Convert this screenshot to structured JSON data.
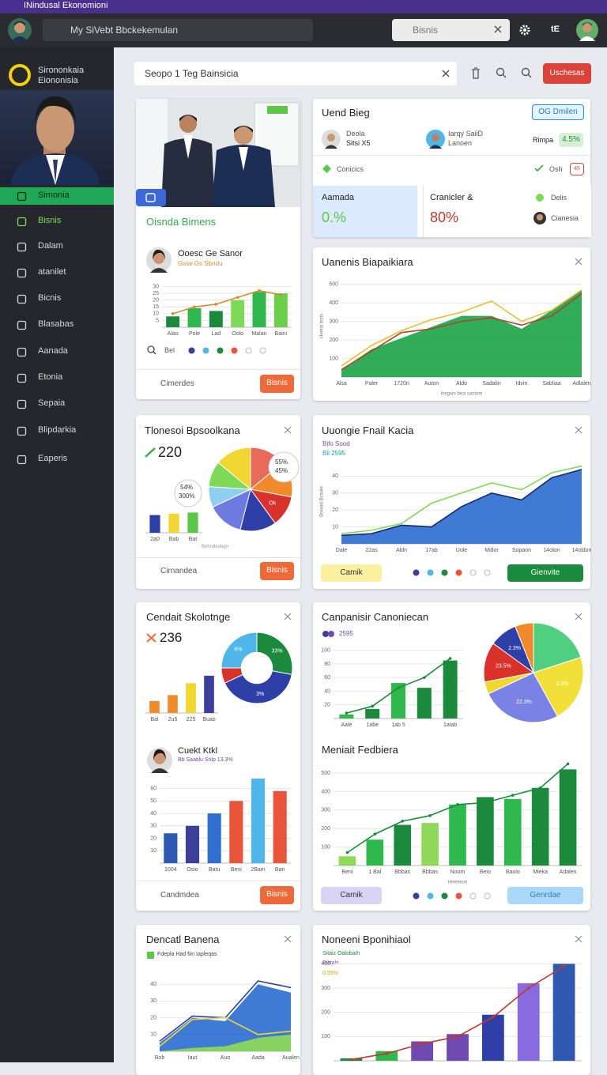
{
  "browser": {
    "tab_title": "INindusal Ekonomioni"
  },
  "header": {
    "search_placeholder": "My SiVebt Bbckekemulan",
    "search_query": "Bisnis",
    "badge": "tE"
  },
  "sidebar": {
    "brand": [
      "Sirononkaia",
      "Eiononisia"
    ],
    "menu": [
      "Simonia",
      "Bisnis",
      "Dalam",
      "atanilet",
      "Bicnis",
      "Blasabas",
      "Aanada",
      "Etonia",
      "Sepaia",
      "Blipdarkia",
      "Eaperis"
    ]
  },
  "toolbar": {
    "search": "Seopo 1 Teg Bainsicia",
    "button": "Uschesas"
  },
  "cards": [
    {
      "title": "Oisnda Bimens",
      "person": {
        "name": "Ooesc Ge Sanor",
        "detail": "Gsse Gs Sbndu"
      },
      "chart": {
        "type": "bar",
        "ylim": [
          0,
          35
        ],
        "yticks": [
          5,
          10,
          15,
          20,
          25,
          30
        ],
        "categories": [
          "Alao",
          "Pole",
          "Lad",
          "Oolo",
          "Malan",
          "Baini"
        ],
        "series": [
          {
            "values": [
              8,
              14,
              12,
              20,
              26,
              25
            ],
            "colors": [
              "#1c8a3c",
              "#2fb84e",
              "#1c8a3c",
              "#7ed957",
              "#2fb84e",
              "#6ccf4a"
            ]
          },
          {
            "type": "line",
            "values": [
              10,
              15,
              17,
              22,
              27,
              24
            ],
            "color": "#d98b2b"
          }
        ]
      },
      "icon_label": "Bel",
      "footer": "Cimerdes",
      "button": "Bisnis"
    },
    {
      "title": "Uend Bieg",
      "badge": "OG Dmilen",
      "people": [
        {
          "name": "Deola",
          "detail": "Sitsi X5"
        },
        {
          "name": "Iarqy SaiiD",
          "detail": "Lanoen"
        }
      ],
      "metric_label": "Rimpa",
      "metric": "4.5%",
      "row": {
        "label": "Conicics",
        "status": "Osh",
        "flag": "45"
      },
      "tiles": [
        {
          "label": "Aamada",
          "value": "0.%"
        },
        {
          "label": "Cranicler &",
          "value": "80%"
        }
      ],
      "side": [
        "Delis",
        "Cianesia"
      ]
    },
    {
      "title": "Uanenis Biapaikiara",
      "chart": {
        "type": "area",
        "ylim": [
          0,
          550
        ],
        "yticks": [
          100,
          200,
          300,
          400,
          500
        ],
        "categories": [
          "Alsa",
          "Paler",
          "1720n",
          "Auton",
          "Aldo",
          "Sadalin",
          "Idvin",
          "Sabliaa",
          "Adlalen"
        ],
        "x_label": "Icegsio bica sactom",
        "y_label": "Hoetai bisis",
        "series": [
          {
            "values": [
              40,
              150,
              210,
              270,
              330,
              330,
              260,
              360,
              470
            ],
            "color": "#1fa54a"
          },
          {
            "type": "line",
            "values": [
              60,
              170,
              250,
              310,
              350,
              410,
              300,
              360,
              470
            ],
            "color": "#e5c12c"
          },
          {
            "type": "line",
            "values": [
              40,
              140,
              240,
              260,
              300,
              320,
              280,
              330,
              450
            ],
            "color": "#b0432c"
          }
        ]
      }
    },
    {
      "title": "Tlonesoi Bpsoolkana",
      "figure": "220",
      "bar_notes": [
        "54%",
        "300%"
      ],
      "chart": {
        "type": "bar",
        "ylim": [
          0,
          40
        ],
        "categories": [
          "2a0",
          "Bab",
          "Bat"
        ],
        "series": [
          {
            "values": [
              28,
              30,
              32
            ],
            "colors": [
              "#2f3fa8",
              "#f2d632",
              "#5cc84a"
            ]
          }
        ]
      },
      "pie": {
        "type": "pie",
        "values": [
          14,
          14,
          12,
          14,
          14,
          8,
          10,
          14
        ],
        "colors": [
          "#e86a5a",
          "#f08a2a",
          "#d8322a",
          "#2f3fa8",
          "#6f7ae0",
          "#8fd0f0",
          "#7ed957",
          "#f2d632"
        ],
        "value_labels": [
          null,
          null,
          "Ok",
          null,
          null,
          null,
          null,
          null
        ]
      },
      "pie_notes": [
        "55%",
        "45%"
      ],
      "caption": "Bnhrdbulagn",
      "footer": "Cirnandea",
      "button": "Bisnis"
    },
    {
      "title": "Uuongie Fnail Kacia",
      "legend": [
        "Bifo Sood",
        "Bli 2595"
      ],
      "chart": {
        "type": "area",
        "ylim": [
          0,
          50
        ],
        "yticks": [
          10,
          20,
          30,
          40
        ],
        "y_label": "Boiaad Bcaoie",
        "categories": [
          "Dale",
          "22as",
          "Aldn",
          "17ab",
          "Uole",
          "Mdlor",
          "Sopaon",
          "14oton",
          "14oldon"
        ],
        "series": [
          {
            "values": [
              5,
              6,
              11,
              10,
              22,
              30,
              26,
              39,
              44
            ],
            "color": "#2f6fd0"
          },
          {
            "type": "line",
            "values": [
              6,
              8,
              12,
              24,
              30,
              36,
              32,
              42,
              46
            ],
            "color": "#7ed957"
          },
          {
            "type": "line",
            "values": [
              5,
              6,
              11,
              10,
              22,
              30,
              26,
              39,
              44
            ],
            "color": "#1a2a6a"
          }
        ]
      },
      "buttons": [
        "Camik",
        "Gienvite"
      ]
    },
    {
      "title": "Cendait Skolotnge",
      "figure": "236",
      "chart": {
        "type": "bar",
        "ylim": [
          0,
          35
        ],
        "categories": [
          "Bal",
          "2u5",
          "225",
          "Buao"
        ],
        "series": [
          {
            "values": [
              8,
              12,
              20,
              25
            ],
            "colors": [
              "#f08a2a",
              "#f08a2a",
              "#f2d632",
              "#3a3f9a"
            ]
          }
        ]
      },
      "donut": {
        "type": "donut",
        "values": [
          28,
          40,
          7,
          25
        ],
        "colors": [
          "#1c8a3c",
          "#2f3fa8",
          "#d8322a",
          "#4fb6ea"
        ],
        "value_labels": [
          "33%",
          "3%",
          null,
          "6%"
        ]
      },
      "person": {
        "name": "Cuekt Ktkl",
        "detail": "Bb Saatilu Snlp 13.3%"
      },
      "chart2": {
        "type": "bar",
        "ylim": [
          0,
          75
        ],
        "yticks": [
          10,
          20,
          30,
          40,
          50,
          60
        ],
        "categories": [
          "1004",
          "Osio",
          "Batu",
          "Beni",
          "2Bam",
          "Ban"
        ],
        "series": [
          {
            "values": [
              24,
              30,
              40,
              50,
              68,
              58
            ],
            "colors": [
              "#2f58b0",
              "#3a3f9a",
              "#2f6fd0",
              "#e8553a",
              "#4fb6ea",
              "#e8553a"
            ]
          }
        ]
      },
      "footer": "Candmdea",
      "button": "Bisnis"
    },
    {
      "title": "Canpanisir Canoniecan",
      "legend": "2595",
      "chart": {
        "type": "bar",
        "ylim": [
          0,
          110
        ],
        "yticks": [
          20,
          40,
          60,
          80,
          100
        ],
        "categories": [
          "Aale",
          "1abe",
          "1ab 5",
          null,
          "1alab"
        ],
        "series": [
          {
            "values": [
              6,
              14,
              52,
              45,
              85
            ],
            "colors": [
              "#2fb84e",
              "#1c8a3c",
              "#2fb84e",
              "#1c8a3c",
              "#1c8a3c"
            ]
          },
          {
            "type": "line",
            "values": [
              8,
              18,
              45,
              60,
              88
            ],
            "color": "#1c8a3c"
          }
        ]
      },
      "pie": {
        "type": "pie",
        "values": [
          20,
          22,
          26,
          4,
          13,
          9,
          6
        ],
        "colors": [
          "#4fcf7f",
          "#f2e03a",
          "#7a82e6",
          "#f2d632",
          "#d8322a",
          "#2f3fa8",
          "#f08a2a"
        ],
        "value_labels": [
          null,
          "3.3%",
          "22.3%",
          null,
          "23.5%",
          "2.3%",
          null
        ]
      },
      "title2": "Meniait Fedbiera",
      "chart2": {
        "type": "bar",
        "ylim": [
          0,
          560
        ],
        "yticks": [
          100,
          200,
          300,
          400,
          500
        ],
        "x_label": "Hneneon",
        "categories": [
          "Beni",
          "1 Bal",
          "Bbbas",
          "Bbbas",
          "Noum",
          "Beio",
          "Baolo",
          "Mieka",
          "Adalen"
        ],
        "series": [
          {
            "values": [
              50,
              140,
              220,
              230,
              330,
              370,
              360,
              420,
              520
            ],
            "colors": [
              "#8ed957",
              "#2fb84e",
              "#1c8a3c",
              "#8ed957",
              "#2fb84e",
              "#1c8a3c",
              "#2fb84e",
              "#1c8a3c",
              "#1c8a3c"
            ]
          },
          {
            "type": "line",
            "values": [
              70,
              170,
              240,
              270,
              330,
              340,
              380,
              420,
              550
            ],
            "color": "#1c8a3c"
          }
        ]
      },
      "buttons": [
        "Camik",
        "Genrdae"
      ]
    },
    {
      "title": "Dencatl Banena",
      "legend": "Fdepla Had fiin Iapleqas",
      "chart": {
        "type": "area",
        "ylim": [
          0,
          50
        ],
        "yticks": [
          10,
          20,
          30,
          40
        ],
        "categories": [
          "Bob",
          "Iaut",
          "Auo",
          "Aada",
          "Aualen"
        ],
        "series": [
          {
            "values": [
              5,
              20,
              18,
              40,
              35
            ],
            "color": "#2f6fd0"
          },
          {
            "values": [
              0,
              2,
              3,
              8,
              10
            ],
            "color": "#8ed957"
          },
          {
            "type": "line",
            "values": [
              6,
              21,
              20,
              42,
              38
            ],
            "color": "#2f3fa8"
          },
          {
            "type": "line",
            "values": [
              3,
              19,
              20,
              10,
              12
            ],
            "color": "#f2d632"
          }
        ]
      }
    },
    {
      "title": "Noneeni Bponihiaol",
      "legend": [
        "Sitaiz Oalobaih",
        "Biktals",
        "0.55%"
      ],
      "chart": {
        "type": "bar",
        "ylim": [
          0,
          450
        ],
        "yticks": [
          100,
          200,
          300,
          400
        ],
        "series": [
          {
            "values": [
              10,
              40,
              80,
              110,
              190,
              320,
              400
            ],
            "colors": [
              "#1c8a3c",
              "#2fb84e",
              "#6f4ab0",
              "#6f4ab0",
              "#2f3fa8",
              "#8a6ae0",
              "#2f58b0"
            ]
          },
          {
            "type": "line",
            "values": [
              5,
              30,
              70,
              100,
              180,
              300,
              390
            ],
            "color": "#c0392b"
          }
        ]
      }
    }
  ]
}
